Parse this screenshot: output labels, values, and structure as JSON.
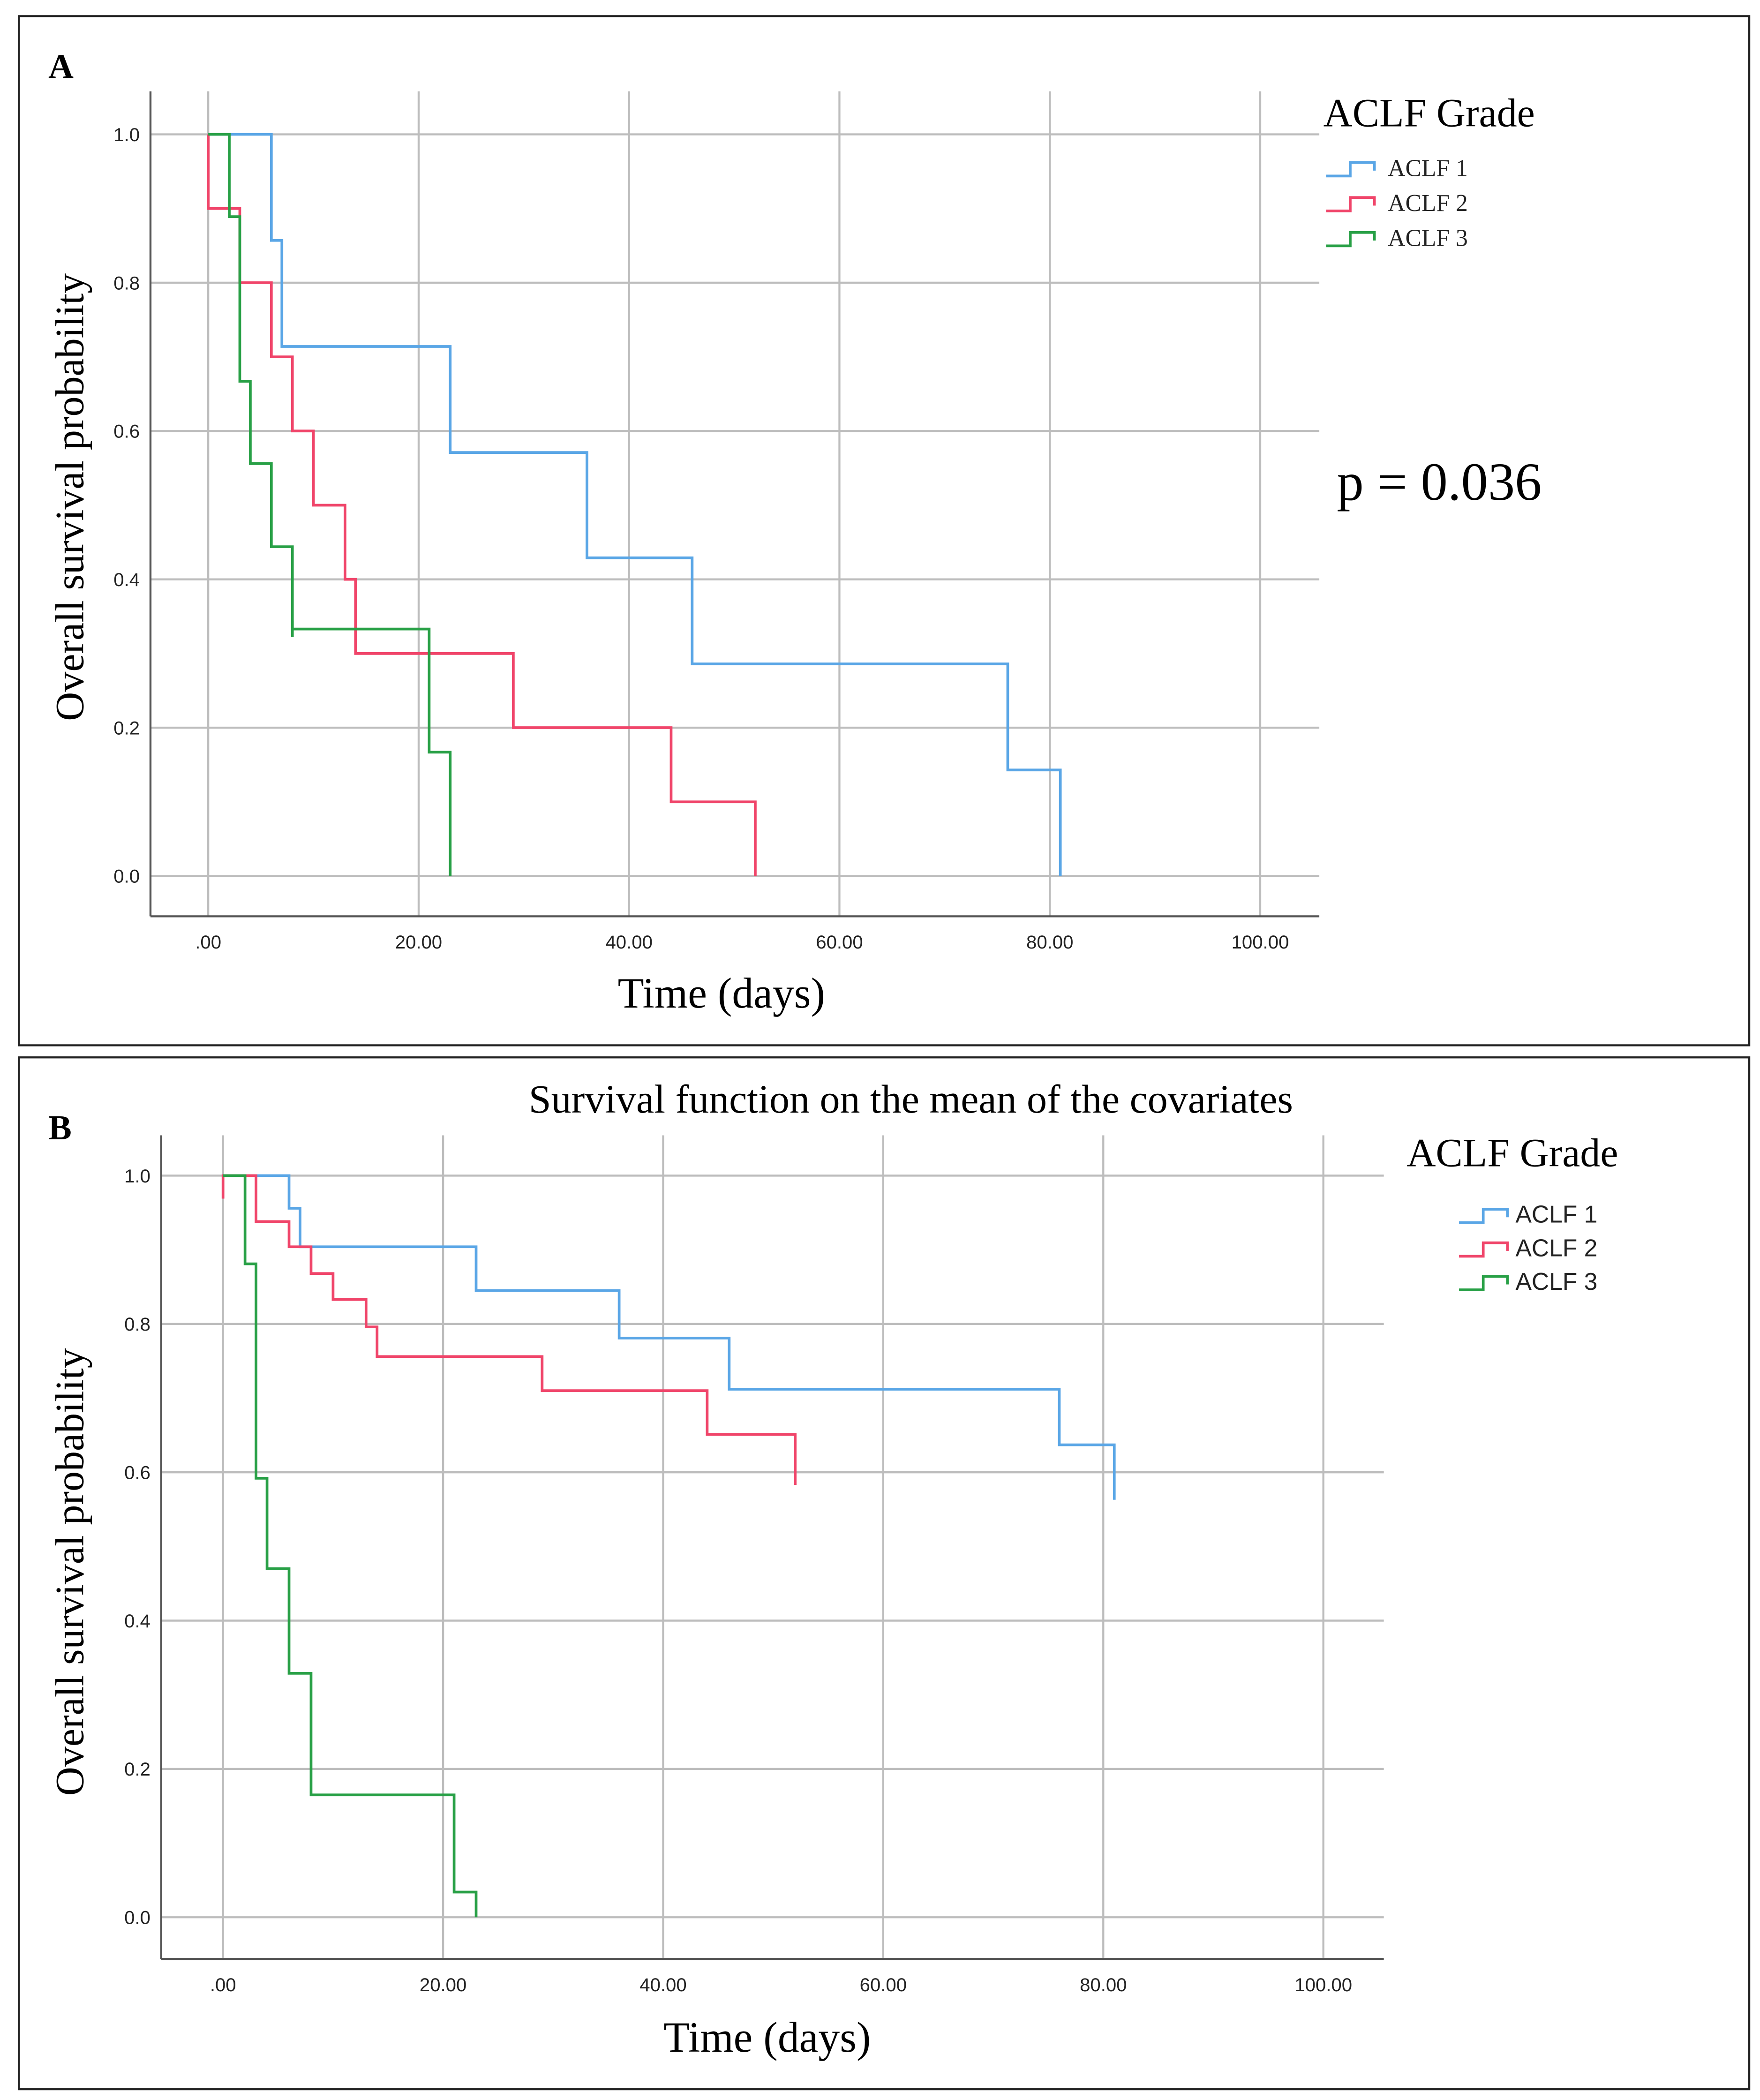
{
  "chart_data": [
    {
      "panel_label": "A",
      "type": "line",
      "subtype": "kaplan-meier step",
      "title": "",
      "xlabel": "Time (days)",
      "ylabel": "Overall survival probability",
      "xlim": [
        0,
        100
      ],
      "ylim": [
        0,
        1
      ],
      "xticks": [
        ".00",
        "20.00",
        "40.00",
        "60.00",
        "80.00",
        "100.00"
      ],
      "xtick_values": [
        0,
        20,
        40,
        60,
        80,
        100
      ],
      "yticks": [
        "0.0",
        "0.2",
        "0.4",
        "0.6",
        "0.8",
        "1.0"
      ],
      "ytick_values": [
        0,
        0.2,
        0.4,
        0.6,
        0.8,
        1.0
      ],
      "grid": true,
      "legend_title": "ACLF Grade",
      "legend_position": "top-right",
      "annotation": "p = 0.036",
      "series": [
        {
          "name": "ACLF 1",
          "color": "#5aa6e6",
          "start": 1.0,
          "steps": [
            [
              6,
              0.857
            ],
            [
              7,
              0.714
            ],
            [
              23,
              0.571
            ],
            [
              36,
              0.429
            ],
            [
              46,
              0.286
            ],
            [
              76,
              0.143
            ],
            [
              81,
              0.0
            ]
          ],
          "censored": []
        },
        {
          "name": "ACLF 2",
          "color": "#f0456a",
          "start": 1.0,
          "steps": [
            [
              0,
              0.9
            ],
            [
              3,
              0.8
            ],
            [
              6,
              0.7
            ],
            [
              8,
              0.6
            ],
            [
              10,
              0.5
            ],
            [
              13,
              0.4
            ],
            [
              14,
              0.3
            ],
            [
              29,
              0.2
            ],
            [
              44,
              0.1
            ],
            [
              52,
              0.0
            ]
          ],
          "censored": []
        },
        {
          "name": "ACLF 3",
          "color": "#28a046",
          "start": 1.0,
          "steps": [
            [
              2,
              0.889
            ],
            [
              3,
              0.667
            ],
            [
              4,
              0.556
            ],
            [
              6,
              0.444
            ],
            [
              8,
              0.333
            ],
            [
              21,
              0.167
            ],
            [
              23,
              0.0
            ]
          ],
          "censored": [
            [
              8,
              0.333
            ]
          ]
        }
      ]
    },
    {
      "panel_label": "B",
      "type": "line",
      "subtype": "cox survival function step",
      "title": "Survival function on the mean of the covariates",
      "xlabel": "Time (days)",
      "ylabel": "Overall survival probability",
      "xlim": [
        0,
        100
      ],
      "ylim": [
        0,
        1
      ],
      "xticks": [
        ".00",
        "20.00",
        "40.00",
        "60.00",
        "80.00",
        "100.00"
      ],
      "xtick_values": [
        0,
        20,
        40,
        60,
        80,
        100
      ],
      "yticks": [
        "0.0",
        "0.2",
        "0.4",
        "0.6",
        "0.8",
        "1.0"
      ],
      "ytick_values": [
        0,
        0.2,
        0.4,
        0.6,
        0.8,
        1.0
      ],
      "grid": true,
      "legend_title": "ACLF Grade",
      "legend_position": "top-right",
      "series": [
        {
          "name": "ACLF 1",
          "color": "#5aa6e6",
          "start": 1.0,
          "steps": [
            [
              6,
              0.956
            ],
            [
              7,
              0.904
            ],
            [
              23,
              0.845
            ],
            [
              36,
              0.781
            ],
            [
              46,
              0.712
            ],
            [
              76,
              0.637
            ],
            [
              81,
              0.563
            ]
          ],
          "censored": []
        },
        {
          "name": "ACLF 2",
          "color": "#f0456a",
          "start": 0.969,
          "steps": [
            [
              0,
              1.0
            ],
            [
              3,
              0.938
            ],
            [
              6,
              0.904
            ],
            [
              8,
              0.868
            ],
            [
              10,
              0.833
            ],
            [
              13,
              0.796
            ],
            [
              14,
              0.756
            ],
            [
              29,
              0.71
            ],
            [
              44,
              0.651
            ],
            [
              52,
              0.583
            ]
          ],
          "censored": []
        },
        {
          "name": "ACLF 3",
          "color": "#28a046",
          "start": 1.0,
          "steps": [
            [
              2,
              0.881
            ],
            [
              3,
              0.592
            ],
            [
              4,
              0.47
            ],
            [
              6,
              0.329
            ],
            [
              8,
              0.165
            ],
            [
              21,
              0.034
            ],
            [
              23,
              0.0
            ]
          ],
          "censored": []
        }
      ]
    }
  ]
}
